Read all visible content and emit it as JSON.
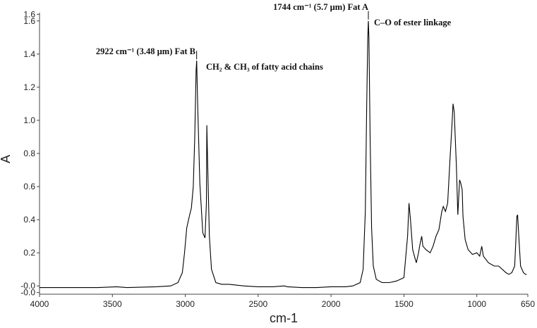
{
  "chart_data": {
    "type": "line",
    "xlabel": "cm-1",
    "ylabel": "A",
    "xlim": [
      4000,
      650
    ],
    "ylim": [
      -0.05,
      1.65
    ],
    "x_reversed": true,
    "grid": false,
    "legend": "none",
    "x_ticks": [
      {
        "value": 4000,
        "label": "4000"
      },
      {
        "value": 3500,
        "label": "3500"
      },
      {
        "value": 3000,
        "label": "3000"
      },
      {
        "value": 2500,
        "label": "2500"
      },
      {
        "value": 2000,
        "label": "2000"
      },
      {
        "value": 1500,
        "label": "1500"
      },
      {
        "value": 1000,
        "label": "1000"
      },
      {
        "value": 650,
        "label": "650"
      }
    ],
    "y_ticks": [
      {
        "value": -0.04,
        "label": "-0.0"
      },
      {
        "value": 0.0,
        "label": "-0.0"
      },
      {
        "value": 0.2,
        "label": "0.2"
      },
      {
        "value": 0.4,
        "label": "0.4"
      },
      {
        "value": 0.6,
        "label": "0.6"
      },
      {
        "value": 0.8,
        "label": "0.8"
      },
      {
        "value": 1.0,
        "label": "1.0"
      },
      {
        "value": 1.2,
        "label": "1.2"
      },
      {
        "value": 1.4,
        "label": "1.4"
      },
      {
        "value": 1.6,
        "label": "1.6"
      },
      {
        "value": 1.64,
        "label": "1.6"
      }
    ],
    "series": [
      {
        "color": "#000000",
        "points": [
          [
            4000,
            -0.01
          ],
          [
            3800,
            -0.01
          ],
          [
            3600,
            -0.01
          ],
          [
            3470,
            -0.005
          ],
          [
            3400,
            -0.01
          ],
          [
            3200,
            -0.005
          ],
          [
            3100,
            0.0
          ],
          [
            3050,
            0.02
          ],
          [
            3020,
            0.08
          ],
          [
            3005,
            0.2
          ],
          [
            2990,
            0.35
          ],
          [
            2970,
            0.43
          ],
          [
            2958,
            0.47
          ],
          [
            2945,
            0.6
          ],
          [
            2935,
            0.9
          ],
          [
            2926,
            1.3
          ],
          [
            2922,
            1.36
          ],
          [
            2915,
            1.1
          ],
          [
            2900,
            0.62
          ],
          [
            2880,
            0.32
          ],
          [
            2865,
            0.29
          ],
          [
            2855,
            0.5
          ],
          [
            2852,
            0.97
          ],
          [
            2846,
            0.72
          ],
          [
            2835,
            0.3
          ],
          [
            2820,
            0.1
          ],
          [
            2790,
            0.02
          ],
          [
            2750,
            0.01
          ],
          [
            2700,
            0.01
          ],
          [
            2600,
            0.0
          ],
          [
            2500,
            -0.005
          ],
          [
            2400,
            -0.005
          ],
          [
            2320,
            0.0
          ],
          [
            2300,
            -0.005
          ],
          [
            2200,
            -0.01
          ],
          [
            2100,
            -0.01
          ],
          [
            2000,
            -0.005
          ],
          [
            1900,
            -0.005
          ],
          [
            1850,
            0.0
          ],
          [
            1800,
            0.02
          ],
          [
            1780,
            0.1
          ],
          [
            1765,
            0.45
          ],
          [
            1755,
            1.1
          ],
          [
            1748,
            1.5
          ],
          [
            1744,
            1.6
          ],
          [
            1740,
            1.5
          ],
          [
            1732,
            0.9
          ],
          [
            1722,
            0.35
          ],
          [
            1710,
            0.12
          ],
          [
            1690,
            0.04
          ],
          [
            1650,
            0.02
          ],
          [
            1600,
            0.02
          ],
          [
            1550,
            0.03
          ],
          [
            1500,
            0.05
          ],
          [
            1475,
            0.3
          ],
          [
            1465,
            0.5
          ],
          [
            1455,
            0.4
          ],
          [
            1440,
            0.22
          ],
          [
            1425,
            0.17
          ],
          [
            1415,
            0.14
          ],
          [
            1400,
            0.2
          ],
          [
            1390,
            0.25
          ],
          [
            1378,
            0.3
          ],
          [
            1370,
            0.24
          ],
          [
            1350,
            0.22
          ],
          [
            1320,
            0.2
          ],
          [
            1300,
            0.24
          ],
          [
            1280,
            0.3
          ],
          [
            1260,
            0.34
          ],
          [
            1240,
            0.45
          ],
          [
            1230,
            0.48
          ],
          [
            1215,
            0.45
          ],
          [
            1200,
            0.5
          ],
          [
            1185,
            0.75
          ],
          [
            1170,
            0.98
          ],
          [
            1163,
            1.1
          ],
          [
            1155,
            1.05
          ],
          [
            1140,
            0.72
          ],
          [
            1130,
            0.43
          ],
          [
            1118,
            0.64
          ],
          [
            1110,
            0.62
          ],
          [
            1100,
            0.58
          ],
          [
            1095,
            0.42
          ],
          [
            1080,
            0.28
          ],
          [
            1060,
            0.22
          ],
          [
            1030,
            0.19
          ],
          [
            1000,
            0.2
          ],
          [
            980,
            0.18
          ],
          [
            966,
            0.24
          ],
          [
            955,
            0.18
          ],
          [
            920,
            0.14
          ],
          [
            880,
            0.12
          ],
          [
            850,
            0.12
          ],
          [
            800,
            0.08
          ],
          [
            780,
            0.07
          ],
          [
            760,
            0.08
          ],
          [
            740,
            0.12
          ],
          [
            725,
            0.42
          ],
          [
            720,
            0.43
          ],
          [
            712,
            0.3
          ],
          [
            700,
            0.12
          ],
          [
            680,
            0.08
          ],
          [
            665,
            0.07
          ],
          [
            658,
            0.07
          ]
        ]
      }
    ],
    "annotations": [
      {
        "text": "1744 cm⁻¹ (5.7 µm) Fat A",
        "x": 1744,
        "anchor": "right"
      },
      {
        "text": "C–O of ester linkage",
        "x": 1744,
        "anchor": "right"
      },
      {
        "text": "2922 cm⁻¹ (3.48 µm) Fat B",
        "x": 2922,
        "anchor": "right"
      },
      {
        "text": "CH₂ & CH₃ of fatty acid chains",
        "x": 2922,
        "anchor": "right"
      }
    ]
  }
}
